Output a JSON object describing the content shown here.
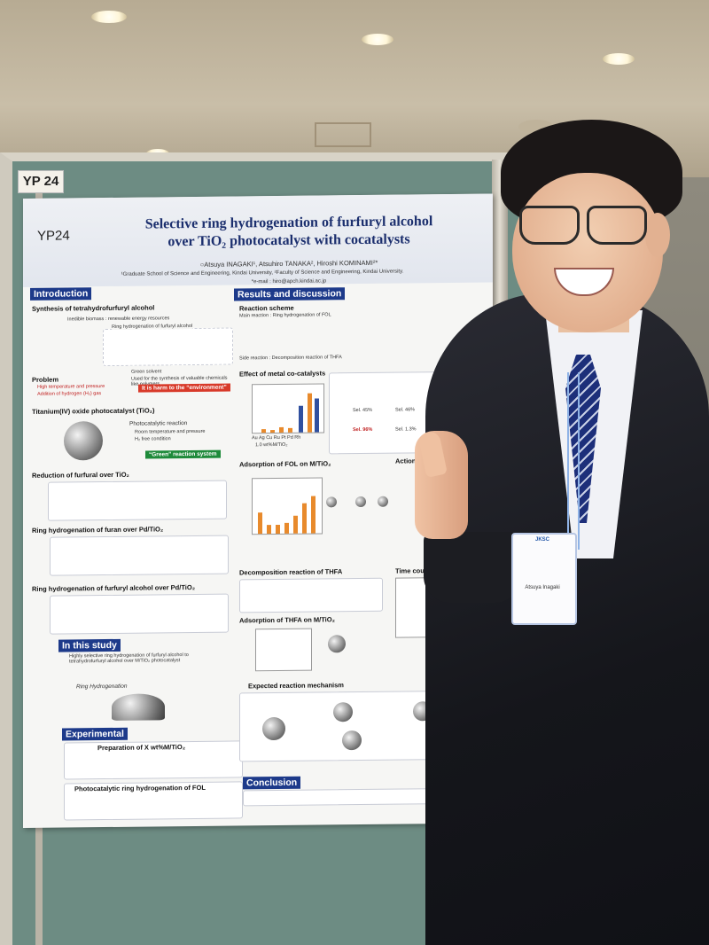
{
  "board_tag": "YP 24",
  "poster": {
    "id": "YP24",
    "title_line1": "Selective ring hydrogenation of furfuryl alcohol",
    "title_line2": "over TiO₂ photocatalyst with cocatalysts",
    "authors": "○Atsuya INAGAKI¹, Atsuhiro TANAKA², Hiroshi KOMINAMI²*",
    "affiliation": "¹Graduate School of Science and Engineering, Kindai University, ²Faculty of Science and Engineering, Kindai University.",
    "email": "*e-mail : hiro@apch.kindai.ac.jp",
    "sections": {
      "introduction": "Introduction",
      "results": "Results and discussion",
      "study": "In this study",
      "experimental": "Experimental",
      "conclusion": "Conclusion"
    },
    "intro": {
      "synthesis": "Synthesis of tetrahydrofurfuryl alcohol",
      "biomass": "Inedible biomass : renewable energy resources",
      "ring_h": "Ring hydrogenation of furfuryl alcohol",
      "green_solvent": "Green solvent",
      "used_for": "Used for the synthesis of valuable chemicals like polymers",
      "problem": "Problem",
      "high_temp": "High temperature and pressure",
      "addition_h2": "Addition of hydrogen (H₂) gas",
      "harm": "It is harm to the “environment”",
      "titanium": "Titanium(IV) oxide photocatalyst (TiO₂)",
      "photocatalytic": "Photocatalytic reaction",
      "room_temp": "Room temperature and pressure",
      "h2_free": "H₂ free condition",
      "green_system": "“Green” reaction system",
      "reduction_tio2": "Reduction of furfural over TiO₂",
      "ring_pd": "Ring hydrogenation of furan over Pd/TiO₂",
      "ring_fol_pd": "Ring hydrogenation of furfuryl alcohol over Pd/TiO₂"
    },
    "results": {
      "scheme": "Reaction scheme",
      "main_reaction": "Main reaction : Ring hydrogenation of FOL",
      "side_reaction": "Side reaction : Decomposition reaction of THFA",
      "effect": "Effect of metal co-catalysts",
      "adsorption_fol": "Adsorption of FOL on M/TiO₂",
      "decomposition_thfa": "Decomposition reaction of THFA",
      "adsorption_thfa": "Adsorption of THFA on M/TiO₂",
      "mechanism": "Expected reaction mechanism",
      "time_course": "Time cou",
      "action": "Action s",
      "sel_a": "Sel. 45%",
      "sel_b": "Sel. 46%",
      "sel_c": "Sel. 96%",
      "sel_d": "Sel. 1.3%",
      "axis_metals": "Au Ag Cu Ru Pt Pd Rh",
      "axis_loading": "1.0 wt%M/TiO₂"
    },
    "study": {
      "highly": "Highly selective ring hydrogenation of furfuryl alcohol to tetrahydrofurfuryl alcohol over M/TiO₂ photocatalyst",
      "ring_h": "Ring Hydrogenation"
    },
    "experimental": {
      "prep": "Preparation of X wt%M/TiO₂",
      "photo": "Photocatalytic ring hydrogenation of FOL"
    }
  },
  "badge": {
    "org": "JKSC",
    "name": "Atsuya Inagaki"
  }
}
